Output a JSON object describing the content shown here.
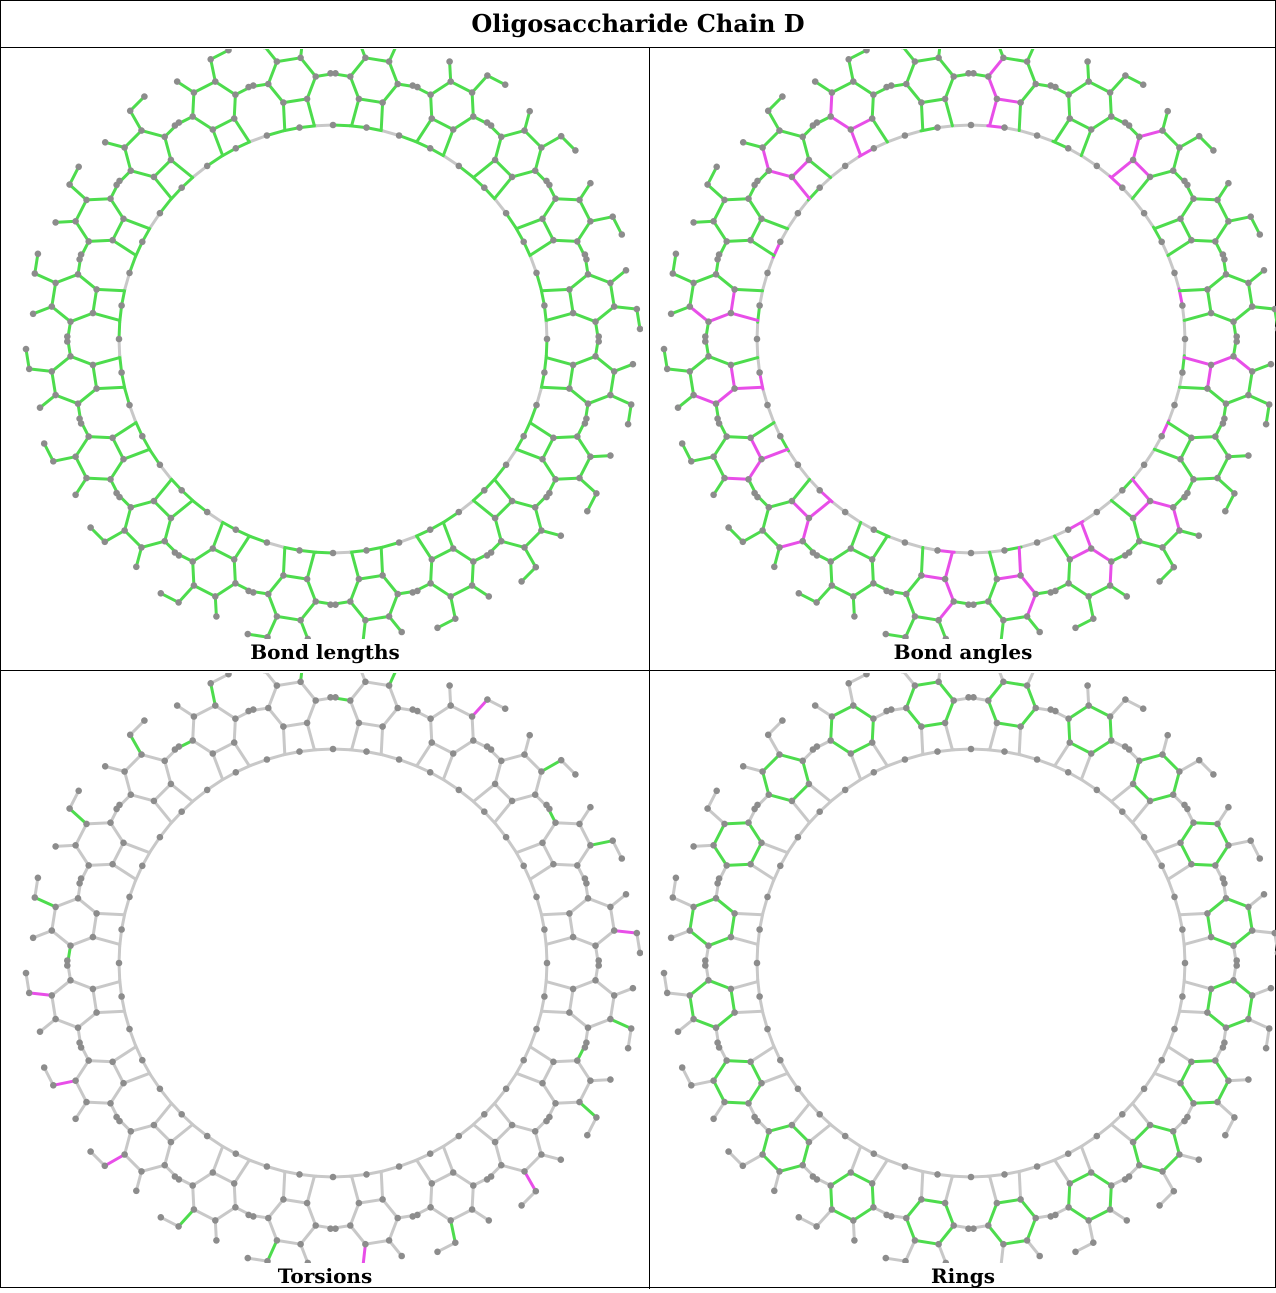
{
  "title": "Oligosaccharide Chain D",
  "panels": [
    {
      "caption": "Bond lengths",
      "mode": "lengths"
    },
    {
      "caption": "Bond angles",
      "mode": "angles"
    },
    {
      "caption": "Torsions",
      "mode": "torsions"
    },
    {
      "caption": "Rings",
      "mode": "rings"
    }
  ],
  "molecule": {
    "residue_count": 20,
    "colors": {
      "ok": "#4ddc4d",
      "outlier": "#e84ee8",
      "neutral": "#c8c8c8",
      "atom": "#8c8c8c"
    },
    "angle_outlier_rings": [
      0,
      2,
      5,
      7,
      8,
      9,
      10,
      12,
      13,
      14,
      15,
      17,
      18
    ],
    "torsion_outlier_rings": [
      1,
      4,
      7,
      9,
      12,
      13,
      14
    ],
    "torsion_ok_rings": [
      0,
      2,
      3,
      5,
      6,
      8,
      10,
      11,
      15,
      16,
      17,
      18,
      19
    ]
  }
}
